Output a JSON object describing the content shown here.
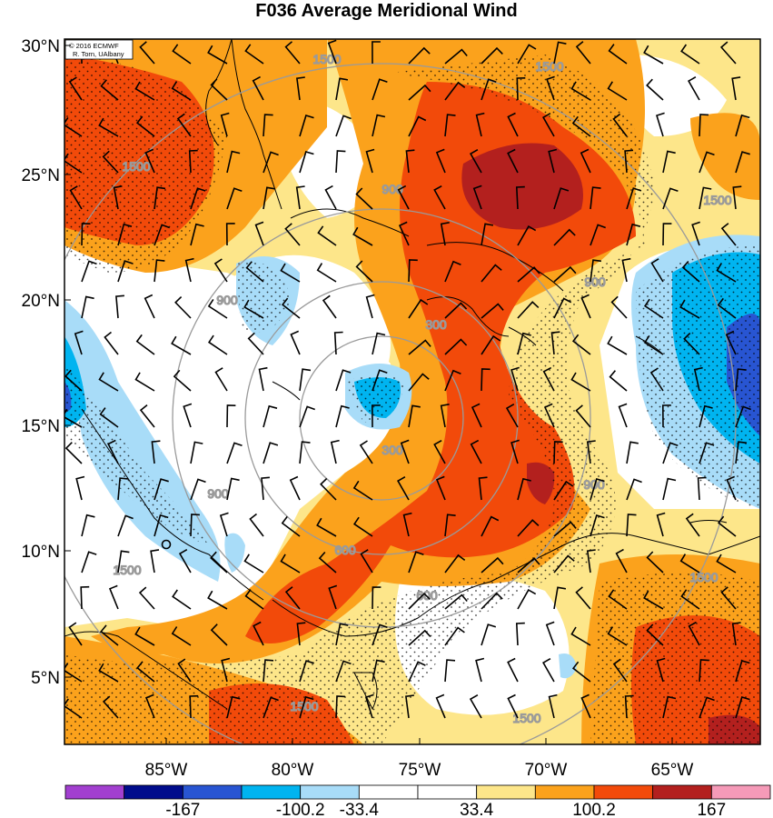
{
  "title": "F036 Average Meridional Wind",
  "credit": {
    "line1": "© 2016 ECMWF",
    "line2": "R. Torn, UAlbany"
  },
  "lat_ticks": [
    "30°N",
    "25°N",
    "20°N",
    "15°N",
    "10°N",
    "5°N"
  ],
  "lon_ticks": [
    "85°W",
    "80°W",
    "75°W",
    "70°W",
    "65°W"
  ],
  "ring_labels": [
    "300",
    "600",
    "900",
    "1500"
  ],
  "colorbar": {
    "colors": [
      "#a23fd0",
      "#000c8c",
      "#2855d2",
      "#00b4f0",
      "#a8dcf8",
      "#ffffff",
      "#ffffff",
      "#fde68a",
      "#fba21c",
      "#f24a0a",
      "#b3201e",
      "#f59ab8"
    ],
    "labels": [
      "-167",
      "-100.2",
      "-33.4",
      "33.4",
      "100.2",
      "167"
    ]
  },
  "field_colors": {
    "white": "#ffffff",
    "light_yellow": "#fde68a",
    "orange": "#fba21c",
    "red_orange": "#f24a0a",
    "dark_red": "#b3201e",
    "light_blue": "#a8dcf8",
    "blue": "#00b4f0",
    "mid_blue": "#2855d2"
  }
}
